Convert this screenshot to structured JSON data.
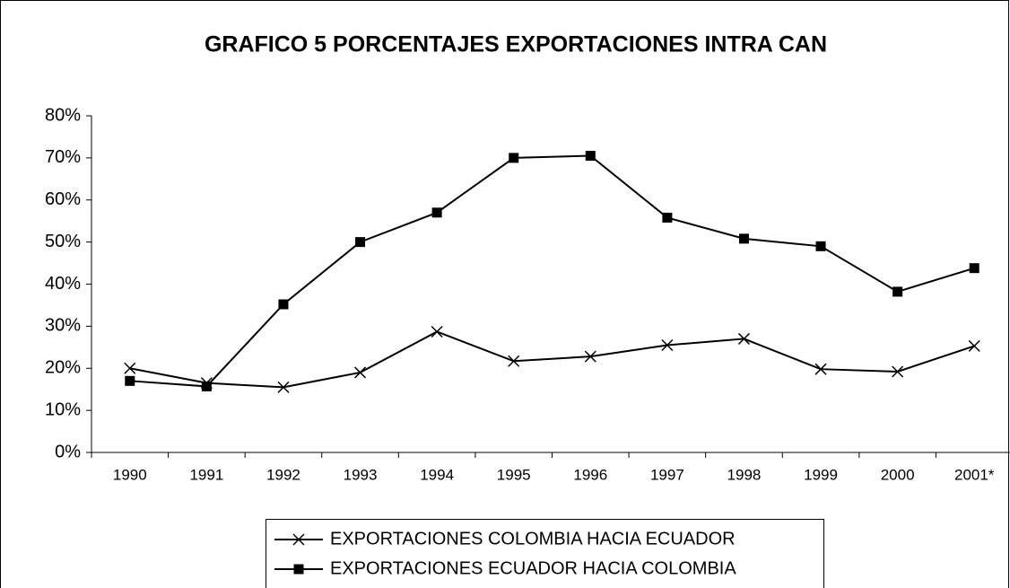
{
  "chart_data": {
    "type": "line",
    "title": "GRAFICO 5  PORCENTAJES EXPORTACIONES INTRA CAN",
    "categories": [
      "1990",
      "1991",
      "1992",
      "1993",
      "1994",
      "1995",
      "1996",
      "1997",
      "1998",
      "1999",
      "2000",
      "2001*"
    ],
    "series": [
      {
        "name": "EXPORTACIONES COLOMBIA HACIA ECUADOR",
        "color": "#000000",
        "marker": "x",
        "values": [
          20,
          16.5,
          15.5,
          19,
          28.7,
          21.7,
          22.8,
          25.5,
          27,
          19.8,
          19.2,
          25.3
        ]
      },
      {
        "name": "EXPORTACIONES ECUADOR HACIA COLOMBIA",
        "color": "#000000",
        "marker": "square",
        "values": [
          17,
          15.7,
          35.2,
          50,
          57,
          70,
          70.5,
          55.8,
          50.8,
          49,
          38.2,
          43.8
        ]
      }
    ],
    "ylim": [
      0,
      80
    ],
    "yticks": [
      {
        "value": 0,
        "label": "0%"
      },
      {
        "value": 10,
        "label": "10%"
      },
      {
        "value": 20,
        "label": "20%"
      },
      {
        "value": 30,
        "label": "30%"
      },
      {
        "value": 40,
        "label": "40%"
      },
      {
        "value": 50,
        "label": "50%"
      },
      {
        "value": 60,
        "label": "60%"
      },
      {
        "value": 70,
        "label": "70%"
      },
      {
        "value": 80,
        "label": "80%"
      }
    ],
    "grid": false,
    "legend": "bottom"
  }
}
